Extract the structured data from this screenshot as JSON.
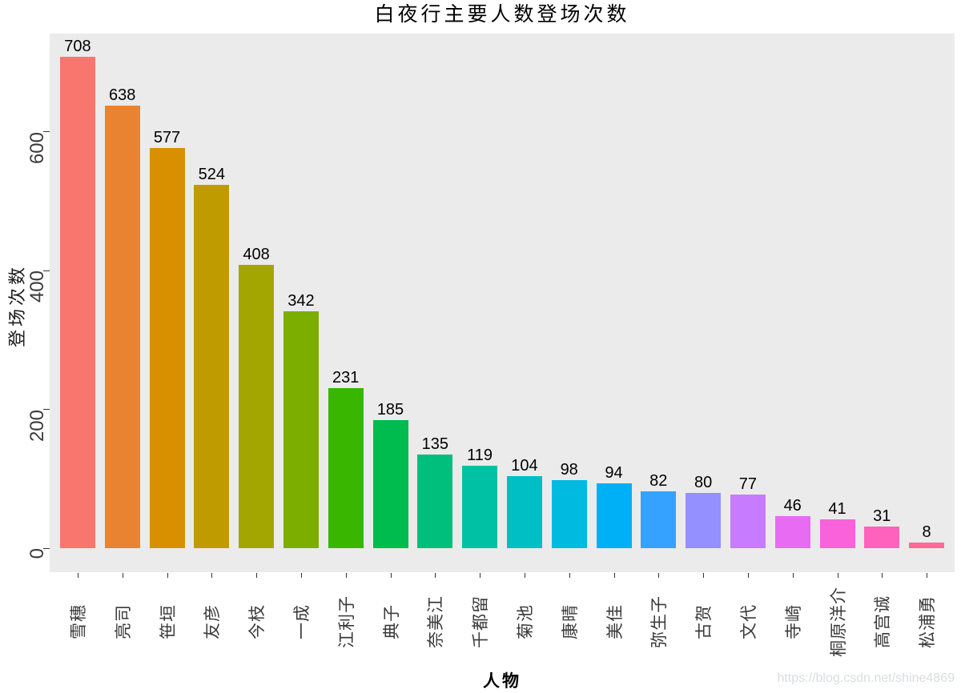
{
  "title": "白夜行主要人数登场次数",
  "x_axis_title": "人物",
  "y_axis_title": "登场次数",
  "watermark": "https://blog.csdn.net/shine4869",
  "chart_data": {
    "type": "bar",
    "title": "白夜行主要人数登场次数",
    "xlabel": "人物",
    "ylabel": "登场次数",
    "categories": [
      "雪穗",
      "亮司",
      "笹垣",
      "友彦",
      "今枝",
      "一成",
      "江利子",
      "典子",
      "奈美江",
      "千都留",
      "菊池",
      "康晴",
      "美佳",
      "弥生子",
      "古贺",
      "文代",
      "寺崎",
      "桐原洋介",
      "高宫诚",
      "松浦勇"
    ],
    "values": [
      708,
      638,
      577,
      524,
      408,
      342,
      231,
      185,
      135,
      119,
      104,
      98,
      94,
      82,
      80,
      77,
      46,
      41,
      31,
      8
    ],
    "bar_labels_shown": true,
    "bar_colors": [
      "#F8766D",
      "#EA8331",
      "#D89000",
      "#C09B00",
      "#A3A500",
      "#7CAE00",
      "#39B600",
      "#00BB4E",
      "#00BF7D",
      "#00C1A3",
      "#00BFC4",
      "#00BAE0",
      "#00B0F6",
      "#35A2FF",
      "#9590FF",
      "#C77CFF",
      "#E76BF3",
      "#FA62DB",
      "#FF62BC",
      "#FF6A98"
    ],
    "yticks": [
      0,
      200,
      400,
      600
    ],
    "ylim": [
      -35.4,
      743.4
    ],
    "panel_background": "#EBEBEB",
    "grid": false,
    "legend_position": "none",
    "x_tick_rotation_deg": 90,
    "y_tick_rotation_deg": 90
  }
}
